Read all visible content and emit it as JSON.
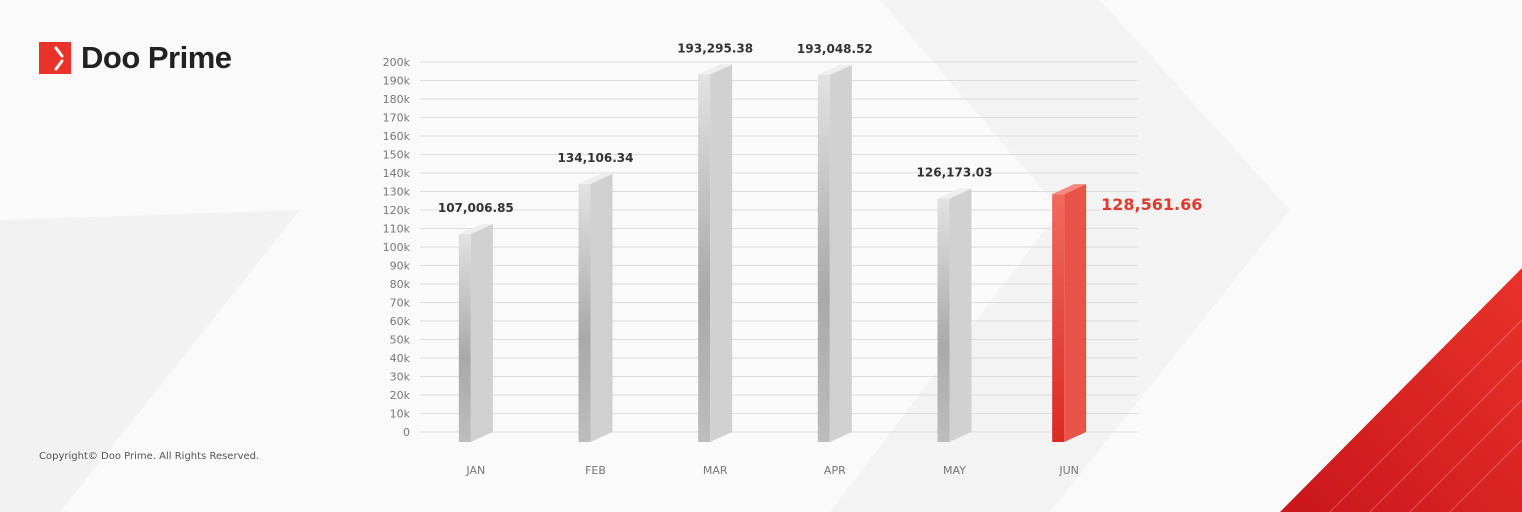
{
  "brand": {
    "name": "Doo Prime",
    "accent": "#e8322a"
  },
  "footer": {
    "copyright": "Copyright© Doo Prime. All Rights Reserved."
  },
  "chart_data": {
    "type": "bar",
    "categories": [
      "JAN",
      "FEB",
      "MAR",
      "APR",
      "MAY",
      "JUN"
    ],
    "values": [
      107006.85,
      134106.34,
      193295.38,
      193048.52,
      126173.03,
      128561.66
    ],
    "data_labels": [
      "107,006.85",
      "134,106.34",
      "193,295.38",
      "193,048.52",
      "126,173.03",
      "128,561.66"
    ],
    "highlight_index": 5,
    "highlight_color": "#e03a30",
    "bar_color": "#c8c8c8",
    "ylim": [
      0,
      200000
    ],
    "yticks": [
      "0",
      "10k",
      "20k",
      "30k",
      "40k",
      "50k",
      "60k",
      "70k",
      "80k",
      "90k",
      "100k",
      "110k",
      "120k",
      "130k",
      "140k",
      "150k",
      "160k",
      "170k",
      "180k",
      "190k",
      "200k"
    ],
    "grid": true,
    "title": "",
    "xlabel": "",
    "ylabel": ""
  }
}
